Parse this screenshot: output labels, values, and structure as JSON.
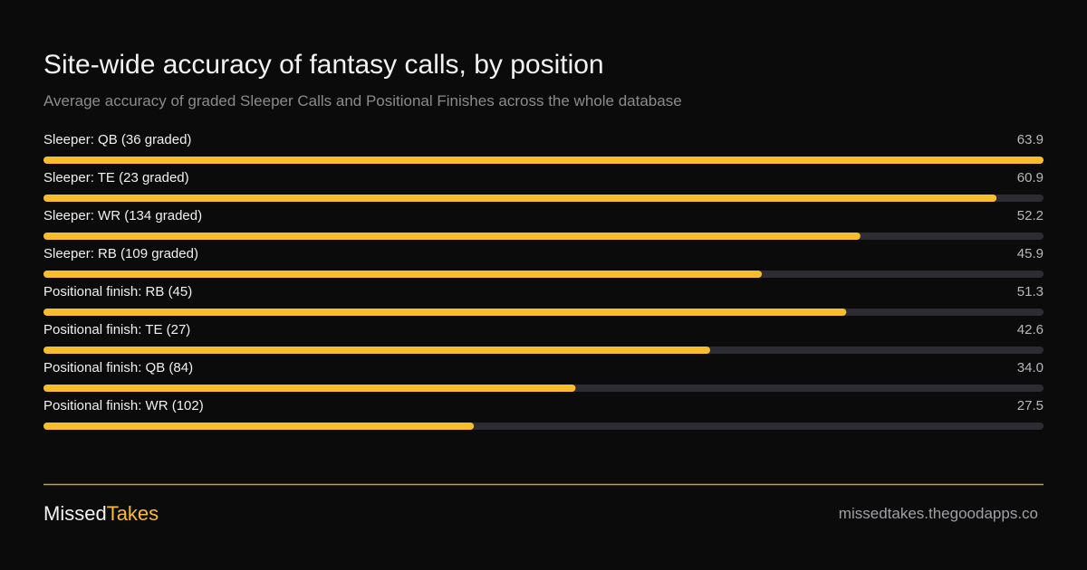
{
  "chart_data": {
    "type": "progress-bar",
    "title": "Site-wide accuracy of fantasy calls, by position",
    "subtitle": "Average accuracy of graded Sleeper Calls and Positional Finishes across the whole database",
    "categories": [
      "Sleeper: QB (36 graded)",
      "Sleeper: TE (23 graded)",
      "Sleeper: WR (134 graded)",
      "Sleeper: RB (109 graded)",
      "Positional finish: RB (45)",
      "Positional finish: TE (27)",
      "Positional finish: QB (84)",
      "Positional finish: WR (102)"
    ],
    "values": [
      63.9,
      60.9,
      52.2,
      45.9,
      51.3,
      42.6,
      34.0,
      27.5
    ],
    "value_labels": [
      "63.9",
      "60.9",
      "52.2",
      "45.9",
      "51.3",
      "42.6",
      "34.0",
      "27.5"
    ],
    "xlim": [
      0,
      63.9
    ],
    "color": "#f8bd2a",
    "track_color": "#2d2c32"
  },
  "footer": {
    "brand_first": "Missed",
    "brand_second": "Takes",
    "url": "missedtakes.thegoodapps.co"
  }
}
